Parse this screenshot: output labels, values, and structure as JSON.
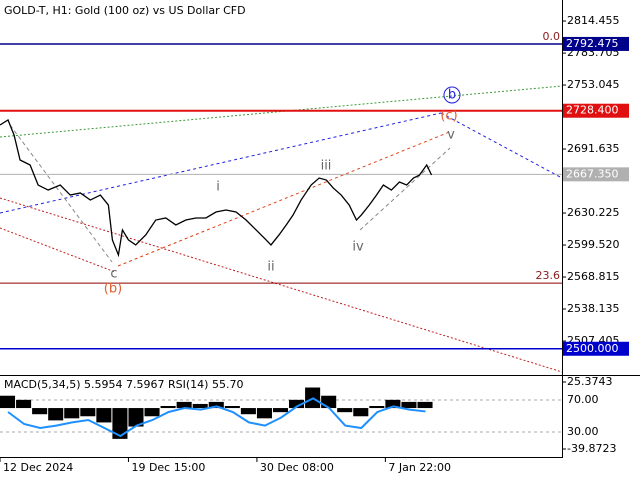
{
  "chart_data": [
    {
      "type": "line",
      "title": "GOLD-T, H1:  Gold (100 oz) vs US Dollar CFD",
      "xlim": [
        0,
        140
      ],
      "xticks": [
        {
          "value": 0,
          "label": "12 Dec 2024"
        },
        {
          "value": 32,
          "label": "19 Dec 15:00"
        },
        {
          "value": 64,
          "label": "30 Dec 08:00"
        },
        {
          "value": 96,
          "label": "7 Jan 22:00"
        }
      ],
      "ylim": [
        2477.7,
        2830.8
      ],
      "yticks": [
        2814.455,
        2783.705,
        2753.045,
        2691.635,
        2630.225,
        {
          "value": 2599.52,
          "label": "2599.520"
        },
        2568.815,
        2538.135,
        2507.405
      ],
      "series": [
        {
          "name": "GOLD-T",
          "color": "#000000",
          "x": [
            0,
            2,
            3.5,
            5,
            7.5,
            9.5,
            12,
            15,
            17.5,
            20,
            22.5,
            25,
            27,
            28,
            29.5,
            30.5,
            32,
            33.8,
            36.3,
            38.8,
            41.3,
            43.8,
            46.3,
            48.8,
            51.3,
            53.8,
            56.3,
            58.8,
            61.3,
            63.8,
            66.3,
            67.5,
            69.5,
            71.3,
            73,
            75,
            77.5,
            79.5,
            81.3,
            83,
            85,
            87,
            88.8,
            90,
            92,
            93.8,
            95.5,
            97.5,
            99.5,
            101.3,
            103,
            104.5,
            106.3,
            107.5
          ],
          "values": [
            2714.7,
            2719.5,
            2705.1,
            2681.1,
            2676.3,
            2657.1,
            2652.3,
            2657.1,
            2647.5,
            2649.5,
            2642.7,
            2647.5,
            2637.9,
            2604.4,
            2590.0,
            2614.0,
            2604.4,
            2599.6,
            2609.2,
            2623.5,
            2625.5,
            2618.8,
            2623.5,
            2625.5,
            2625.5,
            2631.2,
            2633.1,
            2631.2,
            2623.5,
            2614.0,
            2604.4,
            2599.6,
            2609.2,
            2618.8,
            2628.3,
            2642.7,
            2657.1,
            2663.8,
            2661.9,
            2654.3,
            2647.5,
            2637.9,
            2623.5,
            2628.3,
            2637.9,
            2647.5,
            2657.1,
            2652.3,
            2660.0,
            2657.1,
            2663.8,
            2666.7,
            2676.3,
            2666.7
          ]
        }
      ],
      "levels": [
        {
          "value": 2792.475,
          "label": "2792.475",
          "color": "#00008b"
        },
        {
          "value": 2728.4,
          "label": "2728.400",
          "color": "#e01010"
        },
        {
          "value": 2667.35,
          "label": "2667.350",
          "color": "#b0b0b0"
        },
        {
          "value": 2500.0,
          "label": "2500.000",
          "color": "#0000cd"
        }
      ],
      "fib": [
        {
          "value": 2792.475,
          "label": "0.0"
        },
        {
          "value": 2563.0,
          "label": "23.6"
        }
      ],
      "annotations": [
        "i",
        "ii",
        "iii",
        "iv",
        "v",
        "c",
        "(b)",
        "(c)",
        "b"
      ]
    },
    {
      "type": "histogram",
      "title": "MACD(5,34,5) 5.5954 7.5967 RSI(14) 55.70",
      "x": [
        2,
        6,
        10,
        14,
        18,
        22,
        26,
        30,
        34,
        38,
        42,
        46,
        50,
        54,
        58,
        62,
        66,
        70,
        74,
        78,
        82,
        86,
        90,
        94,
        98,
        102,
        106
      ],
      "xlim": [
        0,
        140
      ],
      "ylim": [
        -39.8723,
        25.3743
      ],
      "yticks": [
        25.3743,
        -39.8723
      ],
      "y2lim": [
        1.25,
        97.5
      ],
      "y2ticks": [
        {
          "value": 70,
          "label": "70.00"
        },
        {
          "value": 30,
          "label": "30.00"
        }
      ],
      "series": [
        {
          "name": "MACD",
          "color": "#000000",
          "values": [
            12,
            8,
            -6,
            -12,
            -10,
            -8,
            -14,
            -30,
            -18,
            -8,
            2,
            6,
            4,
            6,
            2,
            -6,
            -10,
            -4,
            8,
            20,
            12,
            -4,
            -8,
            2,
            8,
            6,
            6
          ]
        },
        {
          "name": "RSI",
          "color": "#1e90ff",
          "axis": "y2",
          "values": [
            55,
            40,
            35,
            38,
            42,
            45,
            35,
            25,
            38,
            45,
            55,
            60,
            58,
            62,
            55,
            42,
            38,
            48,
            62,
            72,
            60,
            38,
            35,
            55,
            62,
            58,
            55.7
          ]
        }
      ]
    }
  ]
}
